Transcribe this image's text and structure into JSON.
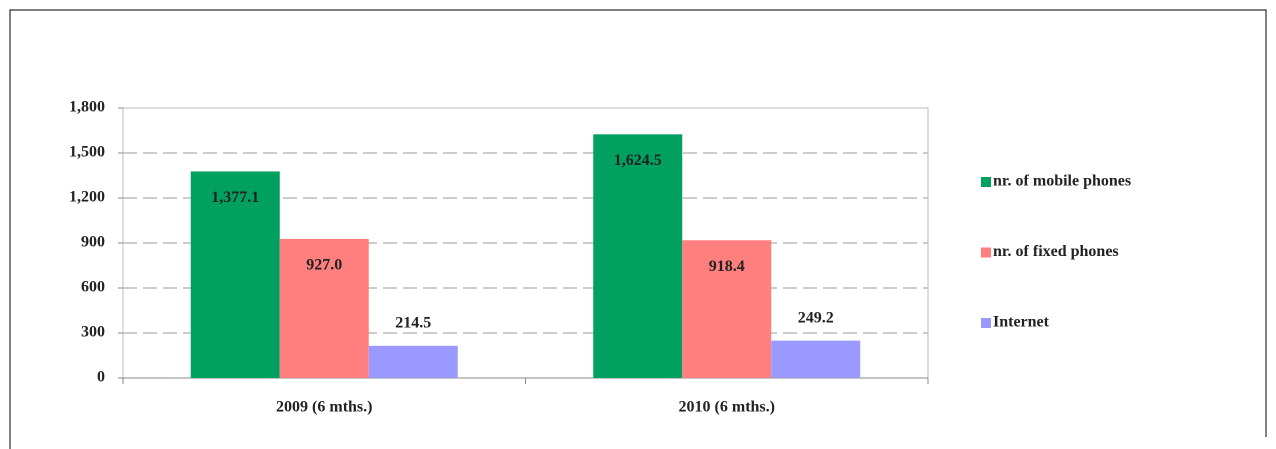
{
  "chart_data": {
    "type": "bar",
    "categories": [
      "2009 (6 mths.)",
      "2010 (6 mths.)"
    ],
    "series": [
      {
        "name": "nr. of mobile phones",
        "color": "#00a060",
        "values": [
          1377.1,
          1624.5
        ],
        "value_labels": [
          "1,377.1",
          "1,624.5"
        ]
      },
      {
        "name": "nr. of fixed phones",
        "color": "#ff7f7f",
        "values": [
          927.0,
          918.4
        ],
        "value_labels": [
          "927.0",
          "918.4"
        ]
      },
      {
        "name": "Internet",
        "color": "#9999ff",
        "values": [
          214.5,
          249.2
        ],
        "value_labels": [
          "214.5",
          "249.2"
        ]
      }
    ],
    "ylim": [
      0,
      1800
    ],
    "yticks": [
      0,
      300,
      600,
      900,
      {
        "value": 1200,
        "label": "1,200"
      },
      {
        "value": 1500,
        "label": "1,500"
      },
      {
        "value": 1800,
        "label": "1,800"
      }
    ],
    "grid": true,
    "legend": "right"
  }
}
